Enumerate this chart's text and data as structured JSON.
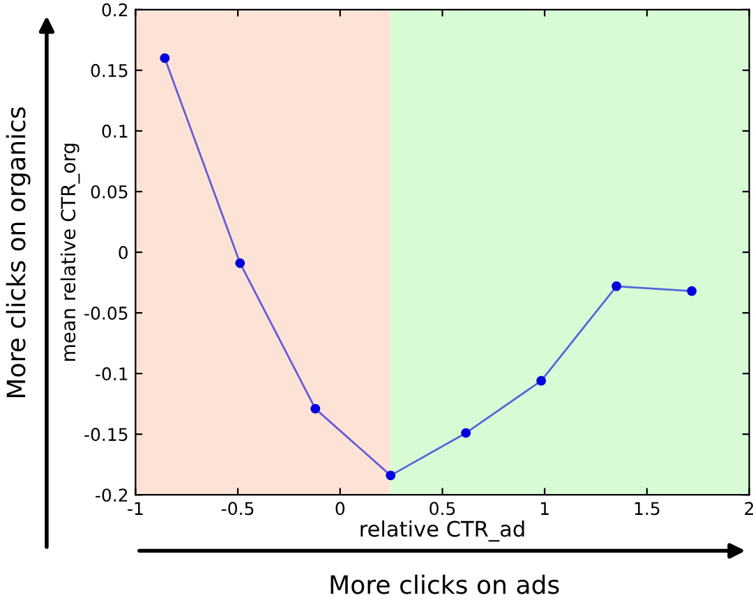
{
  "chart_data": {
    "type": "line",
    "xlabel": "relative CTR_ad",
    "ylabel": "mean relative CTR_org",
    "x": [
      -0.857,
      -0.489,
      -0.121,
      0.247,
      0.615,
      0.983,
      1.351,
      1.719
    ],
    "series": [
      {
        "color": "#0000dd",
        "values": [
          0.16,
          -0.009,
          -0.129,
          -0.184,
          -0.149,
          -0.106,
          -0.028,
          -0.032
        ]
      }
    ],
    "marker": "circle",
    "line_style": "solid",
    "xlim": [
      -1,
      2
    ],
    "ylim": [
      -0.2,
      0.2
    ],
    "xticks": [
      -1,
      -0.5,
      0,
      0.5,
      1,
      1.5,
      2
    ],
    "yticks": [
      -0.2,
      -0.15,
      -0.1,
      -0.05,
      0,
      0.05,
      0.1,
      0.15,
      0.2
    ],
    "bands": [
      {
        "axis": "x",
        "from": -1,
        "to": 0.247,
        "color": "#fde3d6"
      },
      {
        "axis": "x",
        "from": 0.247,
        "to": 2,
        "color": "#d8fbd6"
      }
    ],
    "annotations": [
      "More clicks on ads",
      "More clicks on organics"
    ],
    "grid": false
  }
}
